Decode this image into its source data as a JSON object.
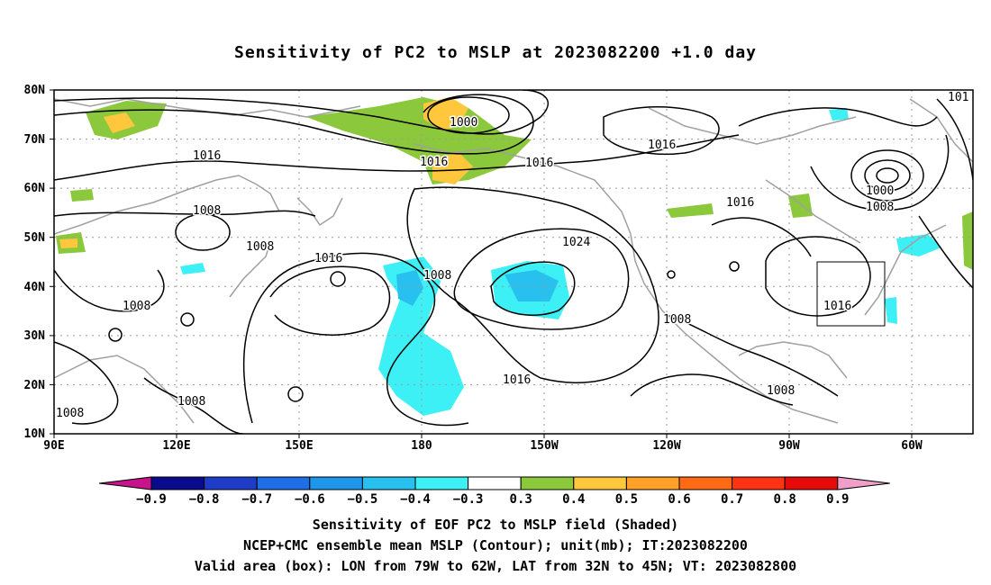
{
  "title": "Sensitivity of PC2 to MSLP at 2023082200 +1.0 day",
  "map": {
    "lat_labels": [
      "80N",
      "70N",
      "60N",
      "50N",
      "40N",
      "30N",
      "20N",
      "10N"
    ],
    "lon_labels": [
      "90E",
      "120E",
      "150E",
      "180",
      "150W",
      "120W",
      "90W",
      "60W"
    ],
    "contour_labels": [
      {
        "text": "1000"
      },
      {
        "text": "1016"
      },
      {
        "text": "1016"
      },
      {
        "text": "1016"
      },
      {
        "text": "1016"
      },
      {
        "text": "1000"
      },
      {
        "text": "1008"
      },
      {
        "text": "1016"
      },
      {
        "text": "1008"
      },
      {
        "text": "1008"
      },
      {
        "text": "1016"
      },
      {
        "text": "1008"
      },
      {
        "text": "1024"
      },
      {
        "text": "1008"
      },
      {
        "text": "1016"
      },
      {
        "text": "1008"
      },
      {
        "text": "1016"
      },
      {
        "text": "1008"
      },
      {
        "text": "1008"
      },
      {
        "text": "1008"
      },
      {
        "text": "101"
      }
    ],
    "valid_box": {
      "lon_from": "79W",
      "lon_to": "62W",
      "lat_from": "32N",
      "lat_to": "45N"
    }
  },
  "colorbar": {
    "labels": [
      "-0.9",
      "-0.8",
      "-0.7",
      "-0.6",
      "-0.5",
      "-0.4",
      "-0.3",
      "0.3",
      "0.4",
      "0.5",
      "0.6",
      "0.7",
      "0.8",
      "0.9"
    ],
    "colors": [
      "#0a0a8c",
      "#1f3cc8",
      "#1e6fe6",
      "#1e96ea",
      "#28c0ee",
      "#3cf0f5",
      "#ffffff",
      "#8cc83c",
      "#ffc83c",
      "#ffa028",
      "#ff6a14",
      "#ff3214",
      "#e60a0a"
    ],
    "low_end_color": "#c8148c",
    "high_end_color": "#f0a0c8"
  },
  "captions": [
    "Sensitivity of EOF PC2 to MSLP field (Shaded)",
    "NCEP+CMC ensemble mean MSLP (Contour); unit(mb); IT:2023082200",
    "Valid area (box): LON from 79W to 62W, LAT from 32N to 45N; VT: 2023082800"
  ]
}
